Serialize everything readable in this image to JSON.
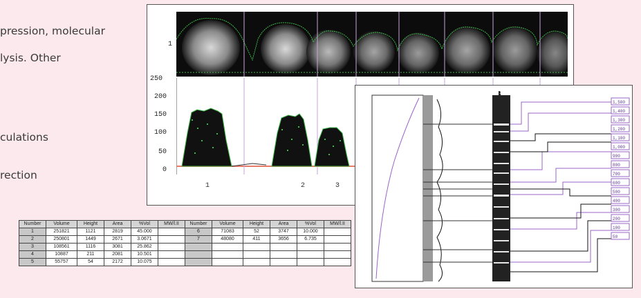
{
  "background_text": [
    "pression, molecular",
    "lysis. Other",
    "culations",
    "rection"
  ],
  "gel": {
    "lane_label": "1",
    "y_ticks": [
      "250",
      "200",
      "150",
      "100",
      "50",
      "0"
    ],
    "x_labels": [
      "1",
      "2",
      "3"
    ]
  },
  "bands": {
    "header_mark": "1",
    "size_labels": [
      "1,500",
      "1,400",
      "1,300",
      "1,200",
      "1,100",
      "1,000",
      "900",
      "800",
      "700",
      "600",
      "500",
      "400",
      "300",
      "200",
      "100",
      "50"
    ]
  },
  "table": {
    "headers": [
      "Number",
      "Volume",
      "Height",
      "Area",
      "%Vol",
      "MW/l.II",
      "Number",
      "Volume",
      "Height",
      "Area",
      "%Vol",
      "MW/l.II"
    ],
    "rows": [
      [
        "1",
        "251821",
        "1121",
        "2819",
        "45.000",
        "",
        "6",
        "71083",
        "52",
        "3747",
        "10.000",
        ""
      ],
      [
        "2",
        "250801",
        "1449",
        "2671",
        "3.0671",
        "",
        "7",
        "48080",
        "411",
        "3656",
        "6.735",
        ""
      ],
      [
        "3",
        "108561",
        "1116",
        "3081",
        "25.862",
        "",
        "",
        "",
        "",
        "",
        "",
        ""
      ],
      [
        "4",
        "10887",
        "211",
        "2081",
        "10.501",
        "",
        "",
        "",
        "",
        "",
        "",
        ""
      ],
      [
        "5",
        "55757",
        "54",
        "2172",
        "10.075",
        "",
        "",
        "",
        "",
        "",
        "",
        ""
      ]
    ]
  },
  "colors": {
    "background": "#fbe9ee",
    "profile_fill": "#111111",
    "profile_edge": "#3fb84a",
    "baseline": "#e87a6a",
    "lane_lines": "#c7a5d9",
    "purple_lines": "#9a63c8"
  }
}
